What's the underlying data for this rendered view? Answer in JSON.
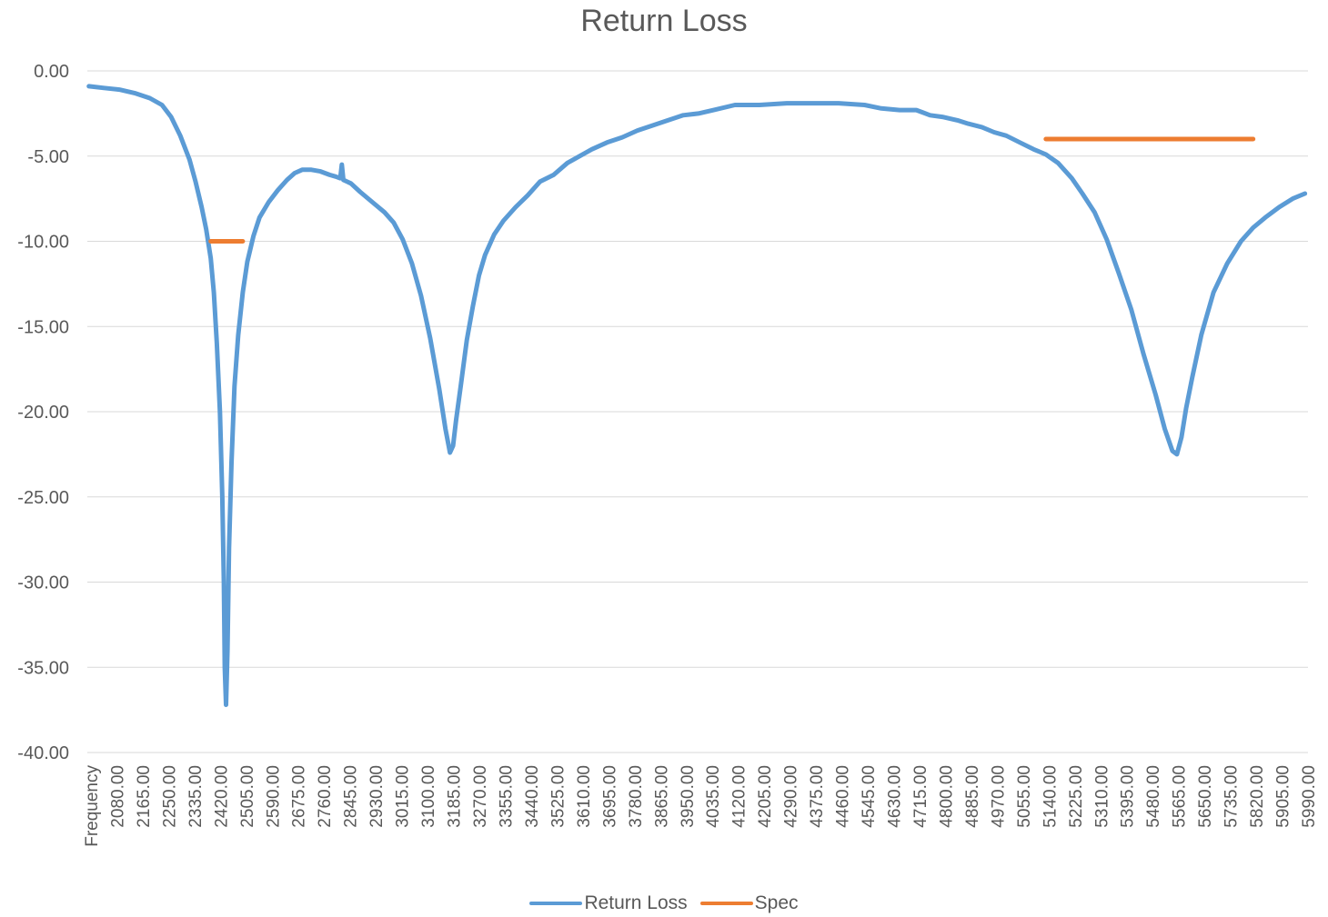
{
  "chart_data": {
    "type": "line",
    "title": "Return Loss",
    "xlabel": "",
    "ylabel": "",
    "ylim": [
      -40,
      0
    ],
    "y_ticks": [
      "0.00",
      "-5.00",
      "-10.00",
      "-15.00",
      "-20.00",
      "-25.00",
      "-30.00",
      "-35.00",
      "-40.00"
    ],
    "x_first_label": "Frequency",
    "x_ticks": [
      "2080.00",
      "2165.00",
      "2250.00",
      "2335.00",
      "2420.00",
      "2505.00",
      "2590.00",
      "2675.00",
      "2760.00",
      "2845.00",
      "2930.00",
      "3015.00",
      "3100.00",
      "3185.00",
      "3270.00",
      "3355.00",
      "3440.00",
      "3525.00",
      "3610.00",
      "3695.00",
      "3780.00",
      "3865.00",
      "3950.00",
      "4035.00",
      "4120.00",
      "4205.00",
      "4290.00",
      "4375.00",
      "4460.00",
      "4545.00",
      "4630.00",
      "4715.00",
      "4800.00",
      "4885.00",
      "4970.00",
      "5055.00",
      "5140.00",
      "5225.00",
      "5310.00",
      "5395.00",
      "5480.00",
      "5565.00",
      "5650.00",
      "5735.00",
      "5820.00",
      "5905.00",
      "5990.00"
    ],
    "grid": true,
    "legend_position": "bottom",
    "series": [
      {
        "name": "Return Loss",
        "color": "#5B9BD5",
        "points": [
          [
            2000,
            -0.9
          ],
          [
            2050,
            -1.0
          ],
          [
            2100,
            -1.1
          ],
          [
            2150,
            -1.3
          ],
          [
            2200,
            -1.6
          ],
          [
            2240,
            -2.0
          ],
          [
            2270,
            -2.7
          ],
          [
            2300,
            -3.8
          ],
          [
            2330,
            -5.2
          ],
          [
            2350,
            -6.5
          ],
          [
            2370,
            -8.0
          ],
          [
            2385,
            -9.3
          ],
          [
            2400,
            -11.0
          ],
          [
            2410,
            -13.0
          ],
          [
            2420,
            -16.0
          ],
          [
            2430,
            -20.0
          ],
          [
            2438,
            -25.0
          ],
          [
            2443,
            -30.0
          ],
          [
            2446,
            -35.0
          ],
          [
            2450,
            -37.2
          ],
          [
            2455,
            -34.0
          ],
          [
            2460,
            -28.0
          ],
          [
            2468,
            -23.0
          ],
          [
            2478,
            -18.5
          ],
          [
            2490,
            -15.5
          ],
          [
            2505,
            -13.0
          ],
          [
            2520,
            -11.2
          ],
          [
            2540,
            -9.7
          ],
          [
            2560,
            -8.6
          ],
          [
            2590,
            -7.7
          ],
          [
            2620,
            -7.0
          ],
          [
            2650,
            -6.4
          ],
          [
            2675,
            -6.0
          ],
          [
            2700,
            -5.8
          ],
          [
            2730,
            -5.8
          ],
          [
            2760,
            -5.9
          ],
          [
            2790,
            -6.1
          ],
          [
            2810,
            -6.2
          ],
          [
            2825,
            -6.3
          ],
          [
            2830,
            -5.5
          ],
          [
            2835,
            -6.4
          ],
          [
            2860,
            -6.6
          ],
          [
            2890,
            -7.1
          ],
          [
            2930,
            -7.7
          ],
          [
            2970,
            -8.3
          ],
          [
            3000,
            -8.9
          ],
          [
            3030,
            -9.9
          ],
          [
            3060,
            -11.3
          ],
          [
            3090,
            -13.2
          ],
          [
            3120,
            -15.7
          ],
          [
            3150,
            -18.7
          ],
          [
            3170,
            -21.0
          ],
          [
            3185,
            -22.4
          ],
          [
            3195,
            -22.0
          ],
          [
            3205,
            -20.5
          ],
          [
            3220,
            -18.5
          ],
          [
            3240,
            -15.8
          ],
          [
            3260,
            -13.8
          ],
          [
            3280,
            -12.0
          ],
          [
            3300,
            -10.8
          ],
          [
            3330,
            -9.6
          ],
          [
            3360,
            -8.8
          ],
          [
            3400,
            -8.0
          ],
          [
            3440,
            -7.3
          ],
          [
            3480,
            -6.5
          ],
          [
            3525,
            -6.1
          ],
          [
            3570,
            -5.4
          ],
          [
            3610,
            -5.0
          ],
          [
            3650,
            -4.6
          ],
          [
            3700,
            -4.2
          ],
          [
            3750,
            -3.9
          ],
          [
            3800,
            -3.5
          ],
          [
            3850,
            -3.2
          ],
          [
            3900,
            -2.9
          ],
          [
            3950,
            -2.6
          ],
          [
            4000,
            -2.5
          ],
          [
            4050,
            -2.3
          ],
          [
            4120,
            -2.0
          ],
          [
            4200,
            -2.0
          ],
          [
            4290,
            -1.9
          ],
          [
            4375,
            -1.9
          ],
          [
            4460,
            -1.9
          ],
          [
            4545,
            -2.0
          ],
          [
            4600,
            -2.2
          ],
          [
            4660,
            -2.3
          ],
          [
            4715,
            -2.3
          ],
          [
            4760,
            -2.6
          ],
          [
            4800,
            -2.7
          ],
          [
            4850,
            -2.9
          ],
          [
            4885,
            -3.1
          ],
          [
            4930,
            -3.3
          ],
          [
            4970,
            -3.6
          ],
          [
            5010,
            -3.8
          ],
          [
            5055,
            -4.2
          ],
          [
            5100,
            -4.6
          ],
          [
            5140,
            -4.9
          ],
          [
            5180,
            -5.4
          ],
          [
            5225,
            -6.3
          ],
          [
            5260,
            -7.2
          ],
          [
            5300,
            -8.3
          ],
          [
            5340,
            -9.9
          ],
          [
            5380,
            -11.9
          ],
          [
            5420,
            -14.0
          ],
          [
            5460,
            -16.6
          ],
          [
            5500,
            -19.0
          ],
          [
            5530,
            -21.0
          ],
          [
            5555,
            -22.3
          ],
          [
            5570,
            -22.5
          ],
          [
            5585,
            -21.5
          ],
          [
            5600,
            -19.8
          ],
          [
            5620,
            -18.0
          ],
          [
            5650,
            -15.5
          ],
          [
            5690,
            -13.0
          ],
          [
            5735,
            -11.3
          ],
          [
            5780,
            -10.0
          ],
          [
            5820,
            -9.2
          ],
          [
            5860,
            -8.6
          ],
          [
            5905,
            -8.0
          ],
          [
            5950,
            -7.5
          ],
          [
            5990,
            -7.2
          ]
        ]
      },
      {
        "name": "Spec",
        "color": "#ED7D31",
        "segments": [
          [
            [
              2400,
              -10
            ],
            [
              2505,
              -10
            ]
          ],
          [
            [
              5140,
              -4
            ],
            [
              5820,
              -4
            ]
          ]
        ]
      }
    ]
  }
}
